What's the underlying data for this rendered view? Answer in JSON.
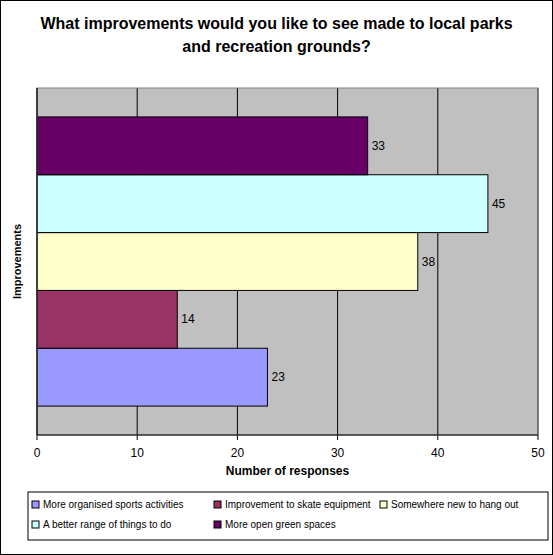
{
  "chart_data": {
    "type": "bar",
    "title": "What improvements would you like to see made to local parks and recreation grounds?",
    "orientation": "horizontal",
    "categories": [
      "More organised sports activities",
      "Improvement to skate equipment",
      "Somewhere new to hang out",
      "A better range of things to do",
      "More open green spaces"
    ],
    "values": [
      23,
      14,
      38,
      45,
      33
    ],
    "colors": [
      "#9999ff",
      "#993366",
      "#ffffcc",
      "#ccffff",
      "#660066"
    ],
    "x_label": "Number of responses",
    "y_label": "Improvements",
    "xlim": [
      0,
      50
    ],
    "xticks": [
      0,
      10,
      20,
      30,
      40,
      50
    ],
    "grid": true,
    "data_labels": true,
    "legend": "bottom",
    "tick_labels": "x"
  }
}
